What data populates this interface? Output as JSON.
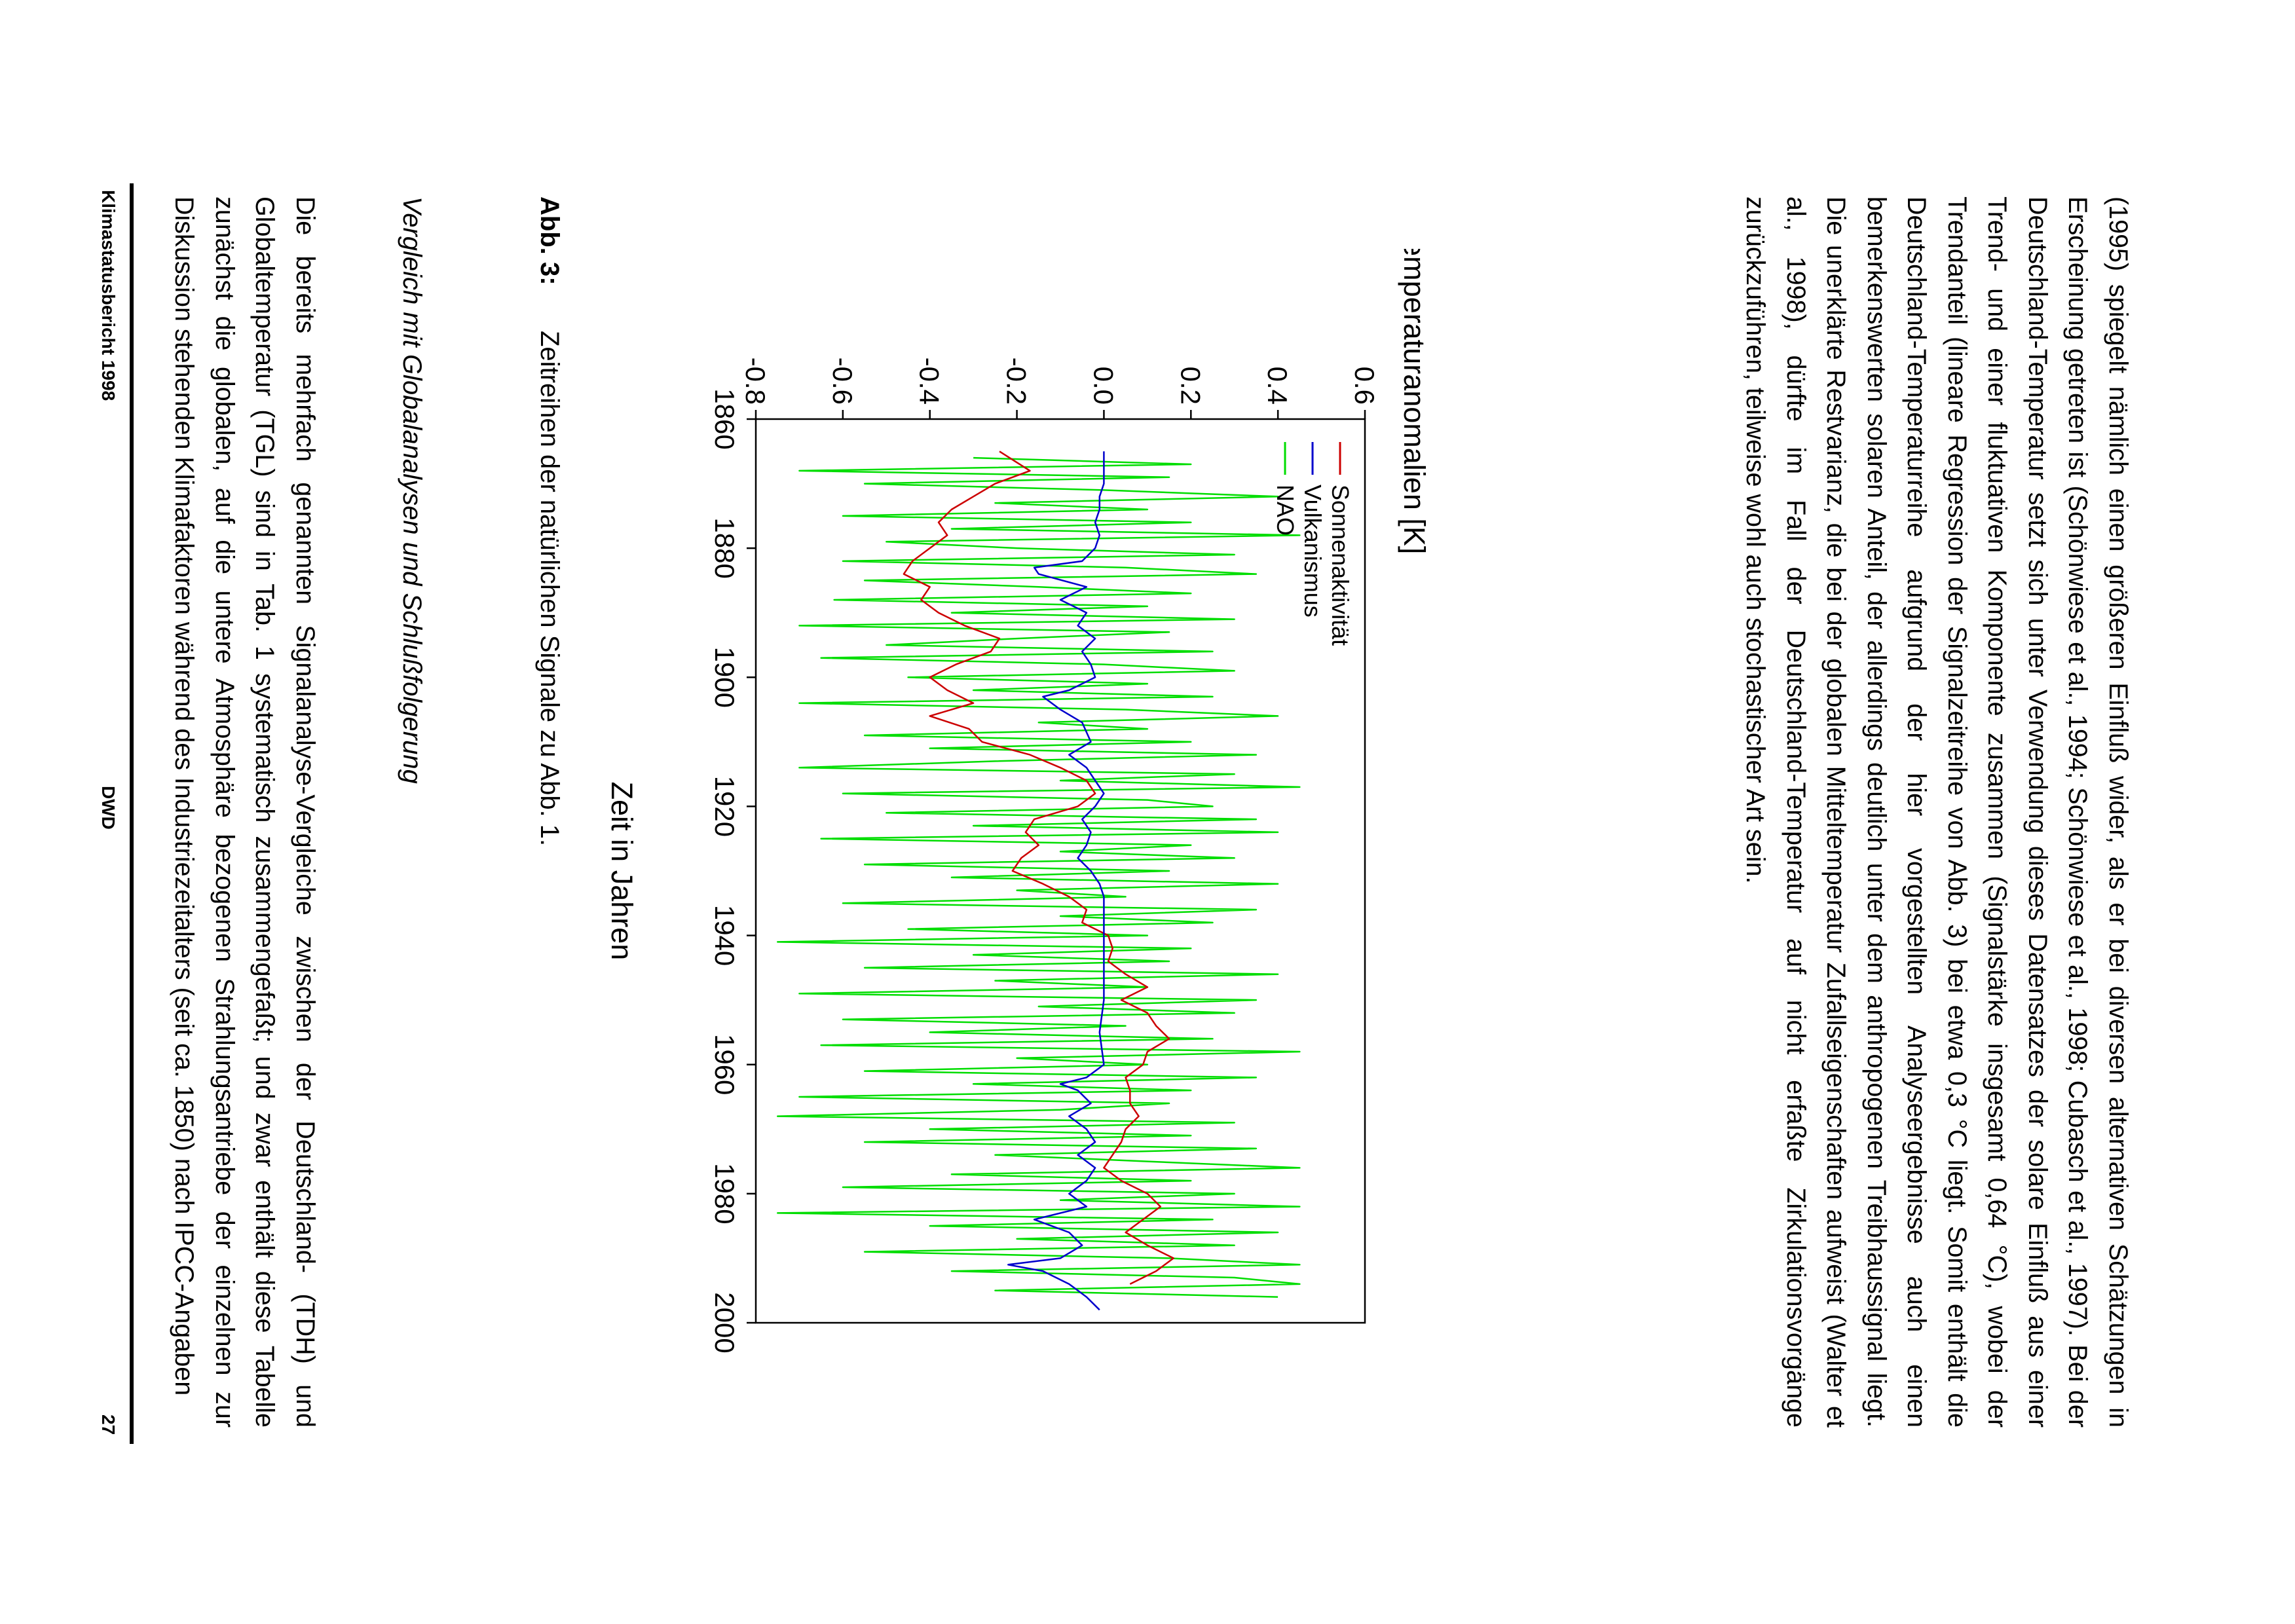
{
  "paragraphs": {
    "top": "(1995) spiegelt nämlich einen größeren Einfluß wider, als er bei diversen alternativen Schätzungen in Erscheinung getreten ist (Schönwiese et al., 1994; Schönwiese et al., 1998; Cubasch et al., 1997). Bei der Deutschland-Temperatur setzt sich unter Verwendung dieses Datensatzes der solare Einfluß aus einer Trend- und einer fluktuativen Komponente zusammen (Signalstärke insgesamt 0,64 °C), wobei der Trendanteil (lineare Regression der Signalzeitreihe von Abb. 3) bei etwa 0,3 °C liegt. Somit enthält die Deutschland-Temperaturreihe aufgrund der hier vorgestellten Analyseergebnisse auch einen bemerkenswerten solaren Anteil, der allerdings deutlich unter dem anthropogenen Treibhaussignal liegt. Die unerklärte Restvarianz, die bei der globalen Mitteltemperatur Zufallseigenschaften aufweist (Walter et al., 1998), dürfte im Fall der Deutschland-Temperatur auf nicht erfaßte Zirkulationsvorgänge zurückzuführen, teilweise wohl auch stochastischer Art sein.",
    "bottom": "Die bereits mehrfach genannten Signalanalyse-Vergleiche zwischen der Deutschland- (TDH) und Globaltemperatur (TGL) sind in Tab. 1 systematisch zusammengefaßt; und zwar enthält diese Tabelle zunächst die globalen, auf die untere Atmosphäre bezogenen Strahlungsantriebe der einzelnen zur Diskussion stehenden Klimafaktoren während des Industriezeitalters (seit ca. 1850) nach IPCC-Angaben"
  },
  "caption": {
    "label": "Abb. 3:",
    "text": "Zeitreihen der natürlichen Signale zu Abb. 1."
  },
  "section_heading": "Vergleich mit Globalanalysen und Schlußfolgerung",
  "footer": {
    "left": "Klimastatusbericht 1998",
    "center": "DWD",
    "right": "27"
  },
  "chart_data": {
    "type": "line",
    "xlabel": "Zeit in Jahren",
    "ylabel": "Temperaturanomalien [K]",
    "xlim": [
      1860,
      2000
    ],
    "ylim": [
      -0.8,
      0.6
    ],
    "x_ticks": [
      "1860",
      "1880",
      "1900",
      "1920",
      "1940",
      "1960",
      "1980",
      "2000"
    ],
    "y_ticks": [
      "-0.8",
      "-0.6",
      "-0.4",
      "-0.2",
      "0.0",
      "0.2",
      "0.4",
      "0.6"
    ],
    "legend_position": "top-left",
    "series": [
      {
        "name": "Sonnenaktivität",
        "color": "#cc0000",
        "x": [
          1865,
          1868,
          1870,
          1872,
          1874,
          1876,
          1878,
          1880,
          1882,
          1884,
          1886,
          1888,
          1890,
          1892,
          1894,
          1896,
          1898,
          1900,
          1902,
          1904,
          1906,
          1908,
          1910,
          1912,
          1914,
          1916,
          1918,
          1920,
          1922,
          1924,
          1926,
          1928,
          1930,
          1932,
          1934,
          1936,
          1938,
          1940,
          1942,
          1944,
          1946,
          1948,
          1950,
          1952,
          1954,
          1956,
          1958,
          1960,
          1962,
          1964,
          1966,
          1968,
          1970,
          1972,
          1974,
          1976,
          1978,
          1980,
          1982,
          1984,
          1986,
          1988,
          1990,
          1992,
          1994
        ],
        "y": [
          -0.24,
          -0.17,
          -0.25,
          -0.3,
          -0.35,
          -0.38,
          -0.36,
          -0.4,
          -0.44,
          -0.46,
          -0.4,
          -0.42,
          -0.38,
          -0.32,
          -0.24,
          -0.26,
          -0.34,
          -0.4,
          -0.36,
          -0.3,
          -0.4,
          -0.31,
          -0.28,
          -0.17,
          -0.1,
          -0.04,
          -0.02,
          -0.06,
          -0.16,
          -0.18,
          -0.15,
          -0.19,
          -0.21,
          -0.14,
          -0.08,
          -0.04,
          -0.05,
          0.01,
          0.02,
          0.01,
          0.05,
          0.1,
          0.04,
          0.1,
          0.12,
          0.15,
          0.1,
          0.09,
          0.05,
          0.06,
          0.06,
          0.08,
          0.05,
          0.04,
          0.02,
          0.0,
          0.04,
          0.1,
          0.13,
          0.09,
          0.05,
          0.1,
          0.16,
          0.12,
          0.06
        ]
      },
      {
        "name": "Vulkanismus",
        "color": "#0000cc",
        "x": [
          1865,
          1868,
          1870,
          1872,
          1874,
          1876,
          1878,
          1880,
          1882,
          1883,
          1884,
          1886,
          1888,
          1890,
          1892,
          1894,
          1896,
          1898,
          1900,
          1902,
          1903,
          1905,
          1907,
          1910,
          1912,
          1914,
          1916,
          1918,
          1920,
          1922,
          1924,
          1926,
          1928,
          1930,
          1932,
          1934,
          1936,
          1940,
          1945,
          1950,
          1955,
          1960,
          1962,
          1963,
          1964,
          1966,
          1968,
          1970,
          1972,
          1974,
          1976,
          1978,
          1980,
          1982,
          1984,
          1986,
          1988,
          1990,
          1991,
          1992,
          1994,
          1996,
          1998
        ],
        "y": [
          0.0,
          0.0,
          0.0,
          -0.01,
          -0.01,
          -0.02,
          -0.01,
          -0.02,
          -0.05,
          -0.16,
          -0.15,
          -0.04,
          -0.1,
          -0.04,
          -0.06,
          -0.02,
          -0.05,
          -0.03,
          -0.02,
          -0.08,
          -0.14,
          -0.1,
          -0.05,
          -0.03,
          -0.08,
          -0.04,
          -0.02,
          0.0,
          -0.02,
          -0.05,
          -0.03,
          -0.04,
          -0.06,
          -0.03,
          -0.01,
          0.0,
          0.0,
          0.0,
          0.0,
          0.0,
          -0.01,
          0.0,
          -0.04,
          -0.1,
          -0.06,
          -0.03,
          -0.08,
          -0.04,
          -0.02,
          -0.06,
          -0.02,
          -0.04,
          -0.08,
          -0.04,
          -0.16,
          -0.08,
          -0.05,
          -0.1,
          -0.22,
          -0.14,
          -0.08,
          -0.04,
          -0.01
        ]
      },
      {
        "name": "NAO",
        "color": "#00dd00",
        "x": [
          1866,
          1867,
          1868,
          1869,
          1870,
          1871,
          1872,
          1873,
          1874,
          1875,
          1876,
          1877,
          1878,
          1879,
          1880,
          1881,
          1882,
          1883,
          1884,
          1885,
          1886,
          1887,
          1888,
          1889,
          1890,
          1891,
          1892,
          1893,
          1894,
          1895,
          1896,
          1897,
          1898,
          1899,
          1900,
          1901,
          1902,
          1903,
          1904,
          1905,
          1906,
          1907,
          1908,
          1909,
          1910,
          1911,
          1912,
          1913,
          1914,
          1915,
          1916,
          1917,
          1918,
          1919,
          1920,
          1921,
          1922,
          1923,
          1924,
          1925,
          1926,
          1927,
          1928,
          1929,
          1930,
          1931,
          1932,
          1933,
          1934,
          1935,
          1936,
          1937,
          1938,
          1939,
          1940,
          1941,
          1942,
          1943,
          1944,
          1945,
          1946,
          1947,
          1948,
          1949,
          1950,
          1951,
          1952,
          1953,
          1954,
          1955,
          1956,
          1957,
          1958,
          1959,
          1960,
          1961,
          1962,
          1963,
          1964,
          1965,
          1966,
          1967,
          1968,
          1969,
          1970,
          1971,
          1972,
          1973,
          1974,
          1975,
          1976,
          1977,
          1978,
          1979,
          1980,
          1981,
          1982,
          1983,
          1984,
          1985,
          1986,
          1987,
          1988,
          1989,
          1990,
          1991,
          1992,
          1993,
          1994,
          1995,
          1996
        ],
        "y": [
          -0.3,
          0.2,
          -0.7,
          0.15,
          -0.55,
          0.0,
          0.4,
          -0.25,
          0.1,
          -0.6,
          0.2,
          -0.35,
          0.45,
          -0.5,
          -0.2,
          0.3,
          -0.6,
          0.05,
          0.35,
          -0.55,
          -0.15,
          0.2,
          -0.62,
          0.1,
          -0.35,
          0.3,
          -0.7,
          0.15,
          -0.2,
          -0.5,
          0.25,
          -0.65,
          0.0,
          0.3,
          -0.45,
          0.1,
          -0.3,
          0.25,
          -0.7,
          0.05,
          0.4,
          -0.15,
          0.1,
          -0.55,
          0.2,
          -0.4,
          0.35,
          -0.25,
          -0.7,
          0.3,
          -0.1,
          0.45,
          -0.6,
          0.1,
          0.25,
          -0.5,
          0.35,
          -0.3,
          0.4,
          -0.65,
          0.2,
          -0.1,
          0.3,
          -0.55,
          0.15,
          -0.35,
          0.4,
          -0.2,
          0.05,
          -0.6,
          0.35,
          -0.1,
          0.25,
          -0.45,
          0.1,
          -0.75,
          0.2,
          -0.3,
          0.15,
          -0.55,
          0.4,
          -0.25,
          0.1,
          -0.7,
          0.35,
          -0.15,
          0.3,
          -0.6,
          0.05,
          -0.4,
          0.25,
          -0.65,
          0.45,
          -0.2,
          0.1,
          -0.55,
          0.35,
          -0.3,
          0.2,
          -0.7,
          0.15,
          -0.1,
          -0.75,
          0.3,
          -0.4,
          0.2,
          -0.55,
          0.35,
          -0.25,
          0.1,
          0.45,
          -0.35,
          0.2,
          -0.6,
          0.3,
          -0.1,
          0.45,
          -0.75,
          0.25,
          -0.4,
          0.4,
          -0.2,
          0.3,
          -0.55,
          0.15,
          0.45,
          -0.35,
          0.3,
          0.45,
          -0.25,
          0.4
        ]
      }
    ]
  }
}
